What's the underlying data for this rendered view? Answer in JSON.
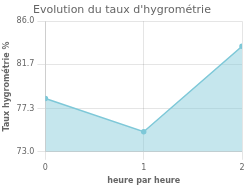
{
  "chart_data": {
    "type": "line",
    "title": "Evolution du taux d'hygrométrie",
    "xlabel": "heure par heure",
    "ylabel": "Taux hygrométrie %",
    "x": [
      0,
      1,
      2
    ],
    "values": [
      78.3,
      75.0,
      83.5
    ],
    "color": "#7ec8d8",
    "xlim": [
      0,
      2
    ],
    "ylim": [
      73.0,
      86.0
    ],
    "xticks": [
      0,
      1,
      2
    ],
    "yticks": [
      {
        "value": 73.0,
        "label": "73.0"
      },
      77.3,
      81.7,
      {
        "value": 86.0,
        "label": "86.0"
      }
    ],
    "grid": true
  }
}
